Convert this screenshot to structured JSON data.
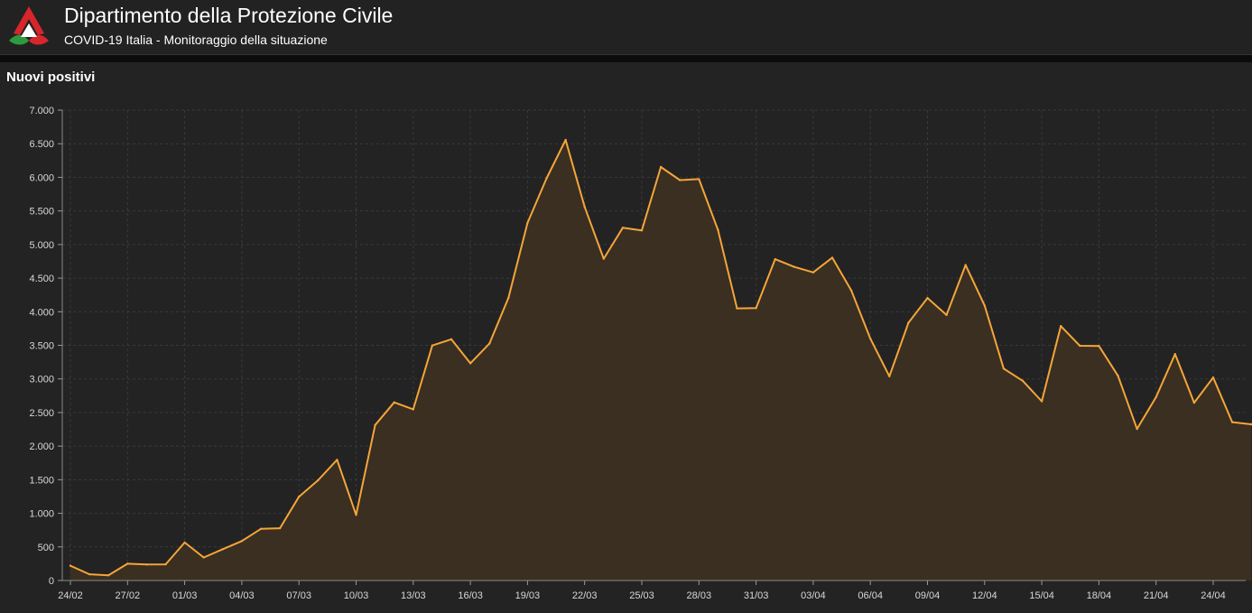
{
  "header": {
    "title": "Dipartimento della Protezione Civile",
    "subtitle": "COVID-19 Italia - Monitoraggio della situazione",
    "logo_icon": "protezione-civile-logo-icon"
  },
  "panel": {
    "title": "Nuovi positivi"
  },
  "colors": {
    "line": "#f5a53a",
    "area": "#3c3022",
    "grid": "#3a3a3a",
    "background": "#232323"
  },
  "chart_data": {
    "type": "area",
    "title": "",
    "xlabel": "",
    "ylabel": "",
    "ylim": [
      0,
      7000
    ],
    "yticks": [
      0,
      500,
      1000,
      1500,
      2000,
      2500,
      3000,
      3500,
      4000,
      4500,
      5000,
      5500,
      6000,
      6500,
      7000
    ],
    "ytick_labels": [
      "0",
      "500",
      "1.000",
      "1.500",
      "2.000",
      "2.500",
      "3.000",
      "3.500",
      "4.000",
      "4.500",
      "5.000",
      "5.500",
      "6.000",
      "6.500",
      "7.000"
    ],
    "grid": true,
    "legend": "none",
    "x": [
      "24/02",
      "25/02",
      "26/02",
      "27/02",
      "28/02",
      "29/02",
      "01/03",
      "02/03",
      "03/03",
      "04/03",
      "05/03",
      "06/03",
      "07/03",
      "08/03",
      "09/03",
      "10/03",
      "11/03",
      "12/03",
      "13/03",
      "14/03",
      "15/03",
      "16/03",
      "17/03",
      "18/03",
      "19/03",
      "20/03",
      "21/03",
      "22/03",
      "23/03",
      "24/03",
      "25/03",
      "26/03",
      "27/03",
      "28/03",
      "29/03",
      "30/03",
      "31/03",
      "01/04",
      "02/04",
      "03/04",
      "04/04",
      "05/04",
      "06/04",
      "07/04",
      "08/04",
      "09/04",
      "10/04",
      "11/04",
      "12/04",
      "13/04",
      "14/04",
      "15/04",
      "16/04",
      "17/04",
      "18/04",
      "19/04",
      "20/04",
      "21/04",
      "22/04",
      "23/04",
      "24/04",
      "25/04",
      "26/04"
    ],
    "xtick_labels": [
      "24/02",
      "27/02",
      "01/03",
      "04/03",
      "07/03",
      "10/03",
      "13/03",
      "16/03",
      "19/03",
      "22/03",
      "25/03",
      "28/03",
      "31/03",
      "03/04",
      "06/04",
      "09/04",
      "12/04",
      "15/04",
      "18/04",
      "21/04",
      "24/04"
    ],
    "series": [
      {
        "values": [
          221,
          93,
          78,
          250,
          238,
          240,
          566,
          342,
          466,
          587,
          769,
          778,
          1247,
          1492,
          1797,
          977,
          2313,
          2651,
          2547,
          3497,
          3590,
          3233,
          3526,
          4207,
          5322,
          5986,
          6557,
          5560,
          4789,
          5249,
          5210,
          6153,
          5959,
          5974,
          5217,
          4050,
          4053,
          4782,
          4668,
          4585,
          4805,
          4316,
          3599,
          3039,
          3836,
          4204,
          3951,
          4694,
          4092,
          3153,
          2972,
          2667,
          3786,
          3493,
          3491,
          3047,
          2256,
          2729,
          3370,
          2646,
          3021,
          2357,
          2324
        ]
      }
    ]
  }
}
